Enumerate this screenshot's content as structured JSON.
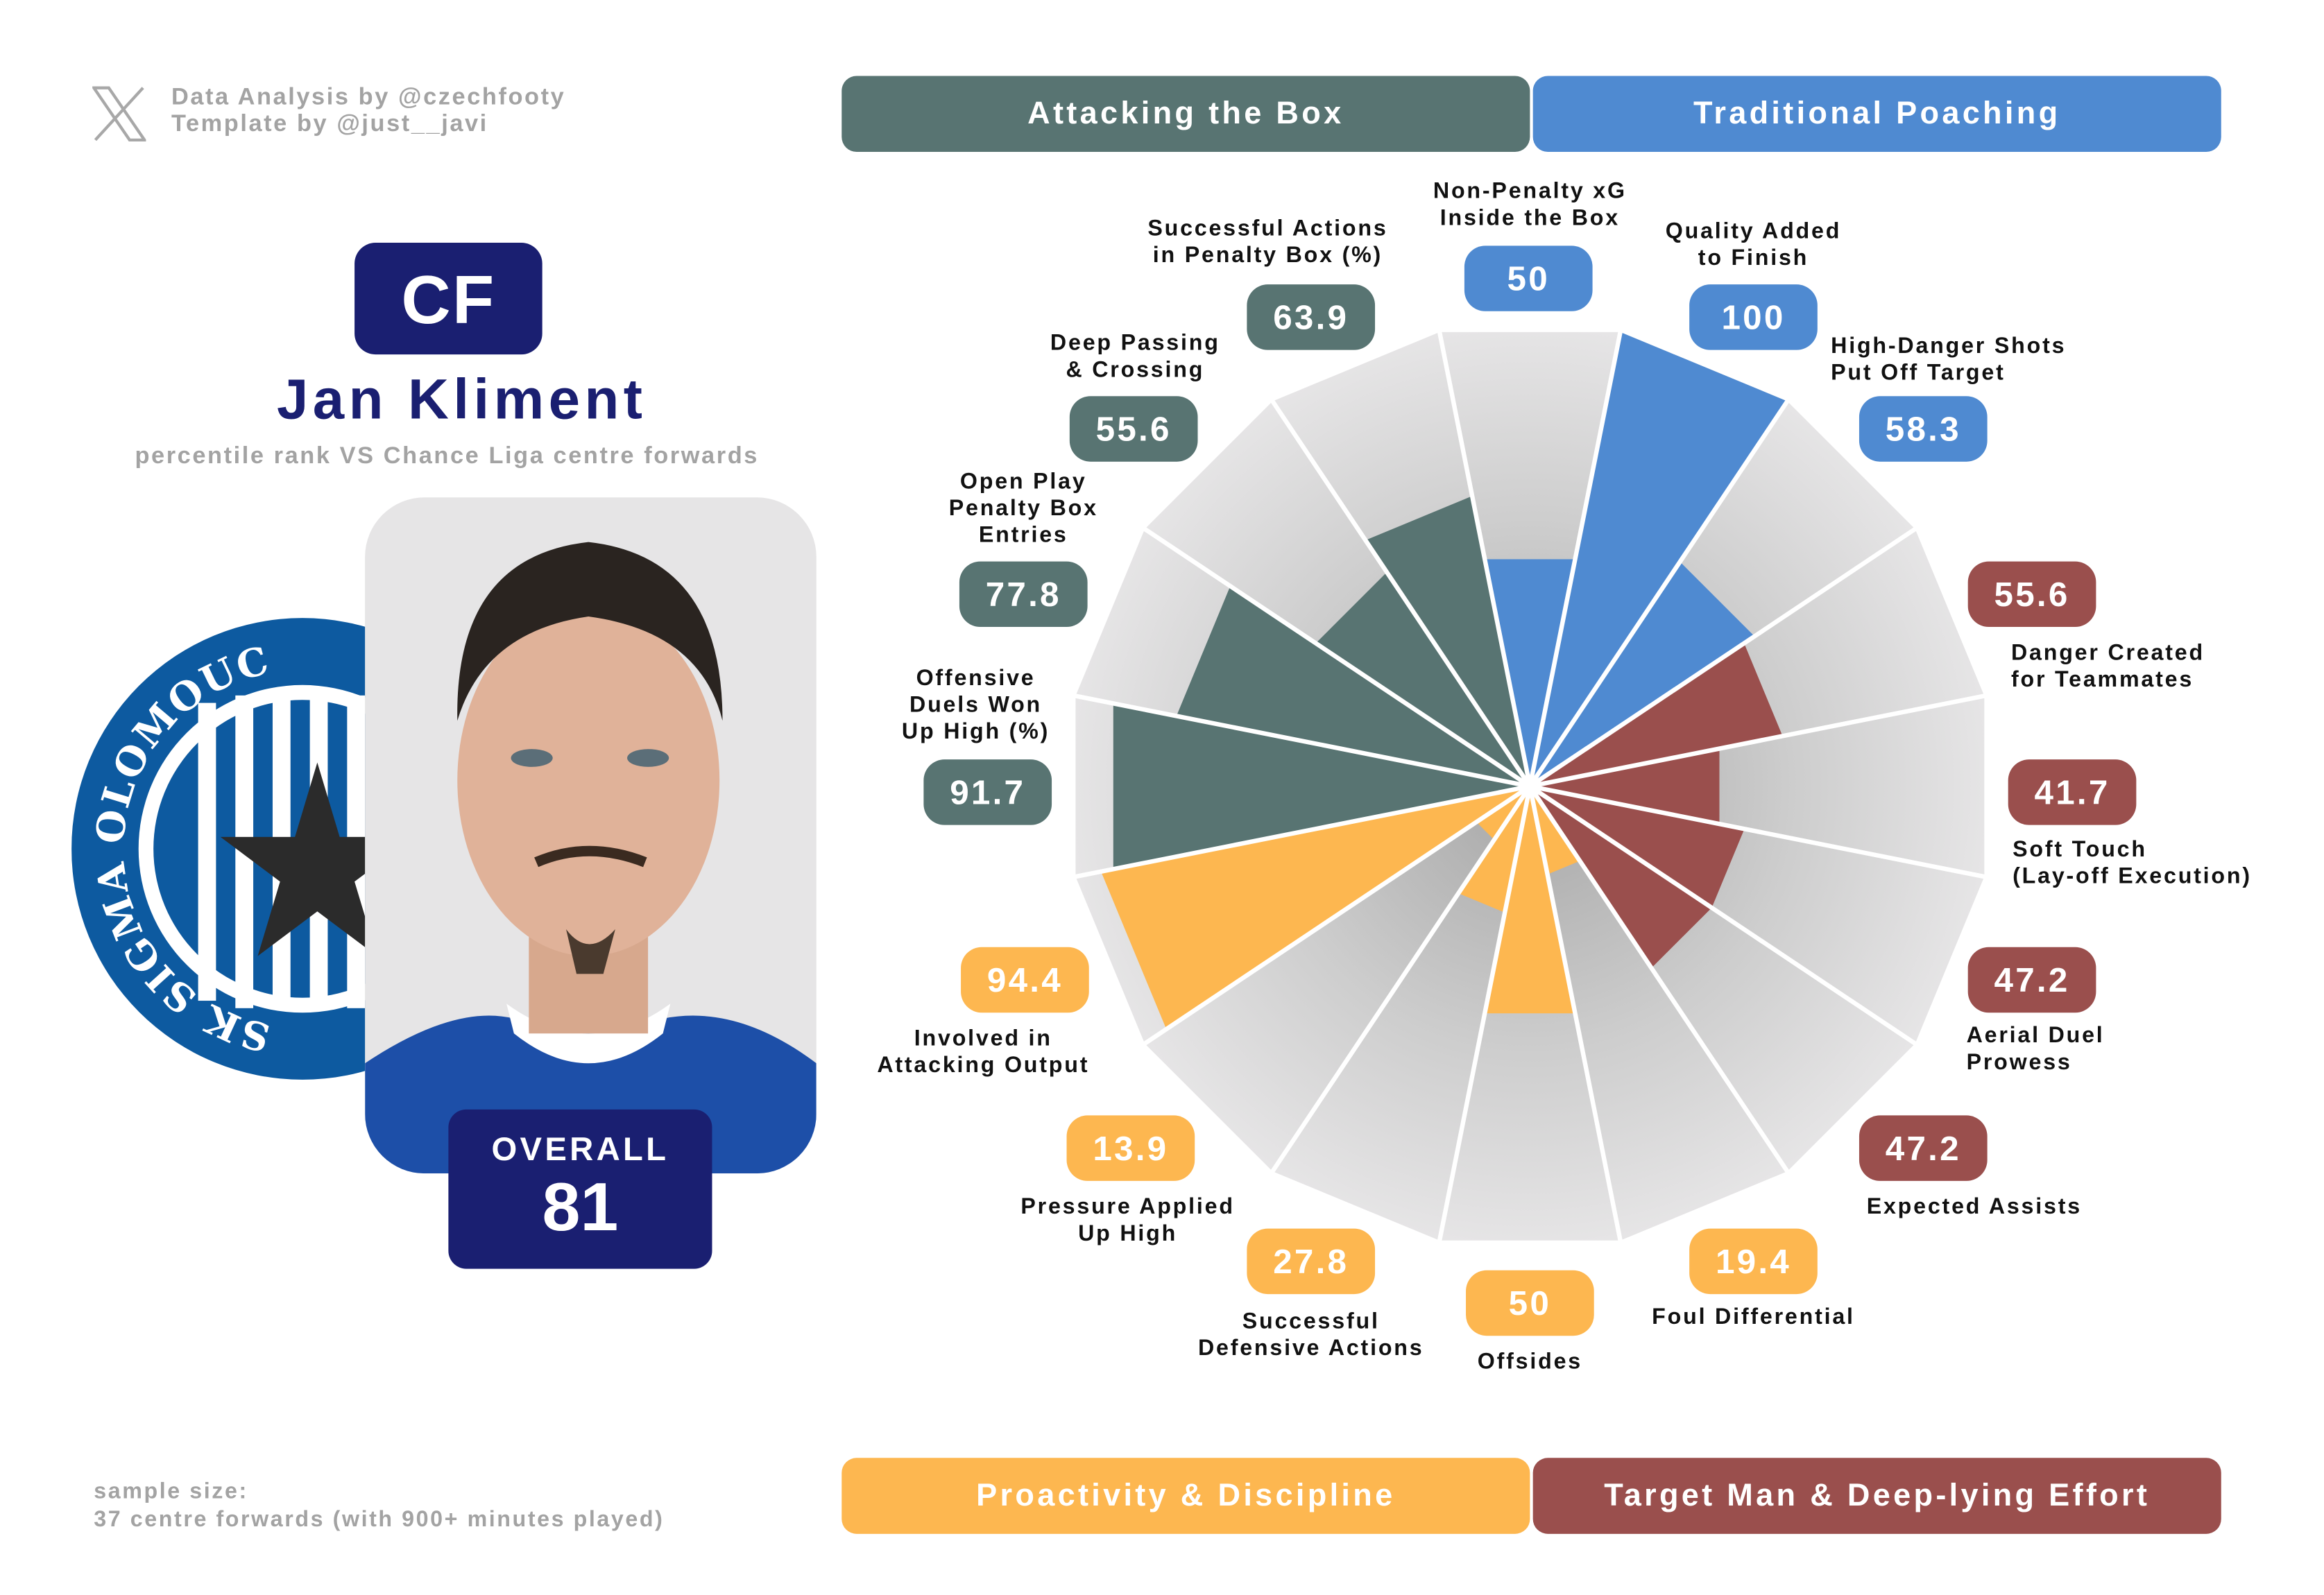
{
  "credits": {
    "line1": "Data Analysis by @czechfooty",
    "line2": "Template by @just__javi"
  },
  "position": "CF",
  "player_name": "Jan Kliment",
  "subtitle": "percentile rank VS Chance Liga centre forwards",
  "club_logo_text": "SK SIGMA OLOMOUC",
  "overall": {
    "label": "OVERALL",
    "value": "81"
  },
  "sample": {
    "line1": "sample size:",
    "line2": "37 centre forwards (with 900+ minutes played)"
  },
  "groups": {
    "attacking": {
      "label": "Attacking the Box",
      "color": "#587472"
    },
    "poaching": {
      "label": "Traditional Poaching",
      "color": "#4f8ad1"
    },
    "proactivity": {
      "label": "Proactivity & Discipline",
      "color": "#fdb750"
    },
    "target": {
      "label": "Target Man & Deep-lying Effort",
      "color": "#9a4f4d"
    }
  },
  "chart_data": {
    "type": "polar-bar",
    "range": [
      0,
      100
    ],
    "metrics": [
      {
        "label": "Non-Penalty xG\nInside the Box",
        "value": 50,
        "display": "50",
        "group": "poaching"
      },
      {
        "label": "Quality Added\nto Finish",
        "value": 100,
        "display": "100",
        "group": "poaching"
      },
      {
        "label": "High-Danger Shots\nPut Off Target",
        "value": 58.3,
        "display": "58.3",
        "group": "poaching"
      },
      {
        "label": "Danger Created\nfor Teammates",
        "value": 55.6,
        "display": "55.6",
        "group": "target"
      },
      {
        "label": "Soft Touch\n(Lay-off Execution)",
        "value": 41.7,
        "display": "41.7",
        "group": "target"
      },
      {
        "label": "Aerial Duel\nProwess",
        "value": 47.2,
        "display": "47.2",
        "group": "target"
      },
      {
        "label": "Expected Assists",
        "value": 47.2,
        "display": "47.2",
        "group": "target"
      },
      {
        "label": "Foul Differential",
        "value": 19.4,
        "display": "19.4",
        "group": "proactivity"
      },
      {
        "label": "Offsides",
        "value": 50,
        "display": "50",
        "group": "proactivity"
      },
      {
        "label": "Successful\nDefensive Actions",
        "value": 27.8,
        "display": "27.8",
        "group": "proactivity"
      },
      {
        "label": "Pressure Applied\nUp High",
        "value": 13.9,
        "display": "13.9",
        "group": "proactivity"
      },
      {
        "label": "Involved in\nAttacking Output",
        "value": 94.4,
        "display": "94.4",
        "group": "proactivity"
      },
      {
        "label": "Offensive\nDuels Won\nUp High (%)",
        "value": 91.7,
        "display": "91.7",
        "group": "attacking"
      },
      {
        "label": "Open Play\nPenalty Box\nEntries",
        "value": 77.8,
        "display": "77.8",
        "group": "attacking"
      },
      {
        "label": "Deep Passing\n& Crossing",
        "value": 55.6,
        "display": "55.6",
        "group": "attacking"
      },
      {
        "label": "Successful Actions\nin Penalty Box (%)",
        "value": 63.9,
        "display": "63.9",
        "group": "attacking"
      }
    ]
  }
}
